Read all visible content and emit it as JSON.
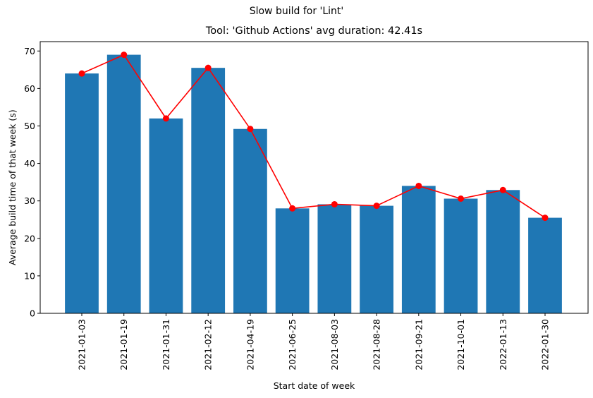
{
  "suptitle": "Slow build for 'Lint'",
  "chart_data": {
    "type": "bar",
    "title": "Tool: 'Github Actions' avg duration: 42.41s",
    "xlabel": "Start date of week",
    "ylabel": "Average build time of that week (s)",
    "categories": [
      "2021-01-03",
      "2021-01-19",
      "2021-01-31",
      "2021-02-12",
      "2021-04-19",
      "2021-06-25",
      "2021-08-03",
      "2021-08-28",
      "2021-09-21",
      "2021-10-01",
      "2022-01-13",
      "2022-01-30"
    ],
    "series": [
      {
        "type": "bar",
        "color": "#1f77b4",
        "values": [
          64.0,
          69.0,
          52.0,
          65.5,
          49.2,
          28.0,
          29.1,
          28.7,
          34.0,
          30.6,
          32.9,
          25.5
        ]
      },
      {
        "type": "line",
        "color": "#ff0000",
        "marker": "circle",
        "values": [
          64.0,
          69.0,
          52.0,
          65.5,
          49.2,
          28.0,
          29.1,
          28.7,
          34.0,
          30.6,
          32.9,
          25.5
        ]
      }
    ],
    "ylim": [
      0,
      72.5
    ],
    "yticks": [
      0,
      10,
      20,
      30,
      40,
      50,
      60,
      70
    ],
    "grid": false
  }
}
